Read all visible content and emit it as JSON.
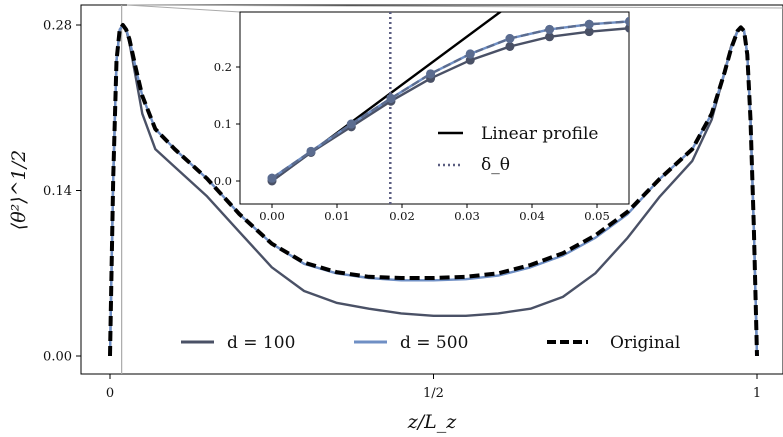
{
  "chart_data": [
    {
      "type": "line",
      "xlabel": "z/L_z",
      "ylabel": "⟨θ²⟩^1/2",
      "xlim": [
        0,
        1
      ],
      "ylim": [
        0,
        0.28
      ],
      "xticks": [
        {
          "value": 0,
          "label": "0"
        },
        {
          "value": 0.5,
          "label": "1/2"
        },
        {
          "value": 1,
          "label": "1"
        }
      ],
      "yticks": [
        {
          "value": 0.0,
          "label": "0.00"
        },
        {
          "value": 0.14,
          "label": "0.14"
        },
        {
          "value": 0.28,
          "label": "0.28"
        }
      ],
      "grid": false,
      "legend_position": "bottom-center",
      "x": [
        0.0,
        0.005,
        0.01,
        0.015,
        0.02,
        0.025,
        0.03,
        0.04,
        0.05,
        0.07,
        0.1,
        0.15,
        0.2,
        0.25,
        0.3,
        0.35,
        0.4,
        0.45,
        0.5,
        0.55,
        0.6,
        0.65,
        0.7,
        0.75,
        0.8,
        0.85,
        0.9,
        0.93,
        0.95,
        0.96,
        0.97,
        0.975,
        0.98,
        0.985,
        0.99,
        0.995,
        1.0
      ],
      "series": [
        {
          "name": "d = 100",
          "color": "#4a5166",
          "style": "solid",
          "values": [
            0.0,
            0.15,
            0.25,
            0.276,
            0.28,
            0.276,
            0.265,
            0.235,
            0.205,
            0.175,
            0.16,
            0.135,
            0.105,
            0.075,
            0.055,
            0.045,
            0.04,
            0.036,
            0.034,
            0.034,
            0.036,
            0.04,
            0.05,
            0.07,
            0.1,
            0.135,
            0.165,
            0.2,
            0.24,
            0.262,
            0.275,
            0.277,
            0.275,
            0.255,
            0.2,
            0.11,
            0.0
          ]
        },
        {
          "name": "d = 500",
          "color": "#6f8fc4",
          "style": "solid",
          "values": [
            0.0,
            0.15,
            0.25,
            0.276,
            0.28,
            0.276,
            0.268,
            0.243,
            0.22,
            0.192,
            0.175,
            0.15,
            0.12,
            0.095,
            0.078,
            0.07,
            0.066,
            0.064,
            0.064,
            0.065,
            0.068,
            0.075,
            0.085,
            0.1,
            0.12,
            0.15,
            0.175,
            0.205,
            0.24,
            0.26,
            0.275,
            0.278,
            0.275,
            0.255,
            0.2,
            0.11,
            0.0
          ]
        },
        {
          "name": "Original",
          "color": "#000000",
          "style": "dashed",
          "values": [
            0.0,
            0.15,
            0.25,
            0.276,
            0.28,
            0.276,
            0.268,
            0.243,
            0.22,
            0.192,
            0.175,
            0.15,
            0.12,
            0.095,
            0.079,
            0.071,
            0.067,
            0.066,
            0.066,
            0.067,
            0.07,
            0.077,
            0.087,
            0.102,
            0.122,
            0.15,
            0.175,
            0.205,
            0.24,
            0.26,
            0.275,
            0.278,
            0.275,
            0.255,
            0.2,
            0.11,
            0.0
          ]
        }
      ],
      "annotations": [
        {
          "type": "vertical-line",
          "x": 0.018,
          "color": "#aaaaaa"
        }
      ]
    },
    {
      "type": "line",
      "inset": true,
      "xlim": [
        -0.005,
        0.055
      ],
      "ylim": [
        -0.02,
        0.28
      ],
      "xticks": [
        {
          "value": 0.0,
          "label": "0.00"
        },
        {
          "value": 0.01,
          "label": "0.01"
        },
        {
          "value": 0.02,
          "label": "0.02"
        },
        {
          "value": 0.03,
          "label": "0.03"
        },
        {
          "value": 0.04,
          "label": "0.04"
        },
        {
          "value": 0.05,
          "label": "0.05"
        }
      ],
      "yticks": [
        {
          "value": 0.0,
          "label": "0.0"
        },
        {
          "value": 0.1,
          "label": "0.1"
        },
        {
          "value": 0.2,
          "label": "0.2"
        }
      ],
      "grid": false,
      "legend_position": "right",
      "linear_profile": {
        "name": "Linear profile",
        "color": "#000000",
        "x": [
          0.0,
          0.045
        ],
        "y": [
          0.0,
          0.38
        ]
      },
      "delta_theta": {
        "name": "δ_θ",
        "x": 0.0182,
        "color": "#5a5d80"
      },
      "x": [
        0.0,
        0.006,
        0.0122,
        0.0183,
        0.0244,
        0.0305,
        0.0366,
        0.0427,
        0.0488,
        0.055
      ],
      "series": [
        {
          "name": "d = 100",
          "color": "#4a5166",
          "marker": "circle",
          "values": [
            0.0,
            0.05,
            0.095,
            0.14,
            0.18,
            0.212,
            0.236,
            0.253,
            0.262,
            0.268
          ]
        },
        {
          "name": "d = 500",
          "color": "#6f8fc4",
          "marker": "circle",
          "values": [
            0.005,
            0.052,
            0.1,
            0.145,
            0.188,
            0.223,
            0.25,
            0.266,
            0.275,
            0.28
          ]
        },
        {
          "name": "Original",
          "color": "#5b6c8f",
          "marker": "circle",
          "style": "dashed",
          "values": [
            0.005,
            0.052,
            0.1,
            0.145,
            0.188,
            0.223,
            0.25,
            0.266,
            0.275,
            0.28
          ]
        }
      ]
    }
  ]
}
